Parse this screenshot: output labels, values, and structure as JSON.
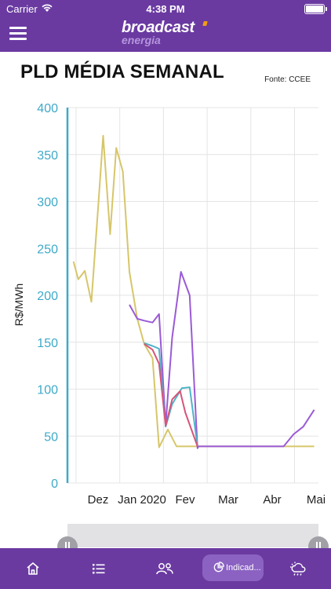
{
  "status_bar": {
    "carrier": "Carrier",
    "time": "4:38 PM"
  },
  "header": {
    "brand": "broadcast",
    "brand_sub": "energia"
  },
  "page": {
    "title": "PLD MÉDIA SEMANAL",
    "source": "Fonte: CCEE"
  },
  "tabbar": {
    "items": [
      {
        "icon": "home-icon"
      },
      {
        "icon": "list-icon"
      },
      {
        "icon": "users-icon"
      },
      {
        "icon": "pie-chart-icon",
        "label": "Indicad...",
        "active": true
      },
      {
        "icon": "weather-icon"
      }
    ]
  },
  "colors": {
    "brand_purple": "#6a3aa1",
    "axis_blue": "#3ea9c8"
  },
  "chart_data": {
    "type": "line",
    "ylabel": "R$/MWh",
    "ylim": [
      0,
      400
    ],
    "yticks": [
      0,
      50,
      100,
      150,
      200,
      250,
      300,
      350,
      400
    ],
    "xticks": [
      "Dez",
      "Jan 2020",
      "Fev",
      "Mar",
      "Abr",
      "Mai"
    ],
    "series": [
      {
        "color": "#d6c66a",
        "points": [
          [
            -0.06,
            236
          ],
          [
            0.05,
            217
          ],
          [
            0.2,
            226
          ],
          [
            0.35,
            193
          ],
          [
            0.5,
            290
          ],
          [
            0.62,
            370
          ],
          [
            0.78,
            265
          ],
          [
            0.92,
            357
          ],
          [
            1.07,
            332
          ],
          [
            1.22,
            225
          ],
          [
            1.4,
            175
          ],
          [
            1.56,
            148
          ],
          [
            1.75,
            133
          ],
          [
            1.9,
            38
          ],
          [
            2.1,
            57
          ],
          [
            2.3,
            39
          ],
          [
            2.55,
            39
          ],
          [
            3.0,
            39
          ],
          [
            3.5,
            39
          ],
          [
            4.0,
            39
          ],
          [
            4.5,
            39
          ],
          [
            5.0,
            39
          ],
          [
            5.45,
            39
          ]
        ]
      },
      {
        "color": "#9a5ad6",
        "points": [
          [
            1.22,
            190
          ],
          [
            1.4,
            175
          ],
          [
            1.56,
            173
          ],
          [
            1.75,
            171
          ],
          [
            1.9,
            180
          ],
          [
            2.05,
            62
          ],
          [
            2.2,
            155
          ],
          [
            2.4,
            225
          ],
          [
            2.6,
            200
          ],
          [
            2.78,
            37
          ],
          [
            2.8,
            39
          ],
          [
            3.0,
            39
          ],
          [
            3.5,
            39
          ],
          [
            4.0,
            39
          ],
          [
            4.5,
            39
          ],
          [
            4.75,
            39
          ],
          [
            4.98,
            52
          ],
          [
            5.2,
            60
          ],
          [
            5.45,
            78
          ]
        ]
      },
      {
        "color": "#4fb4c8",
        "points": [
          [
            1.56,
            149
          ],
          [
            1.75,
            146
          ],
          [
            1.9,
            143
          ],
          [
            2.05,
            60
          ],
          [
            2.2,
            84
          ],
          [
            2.42,
            101
          ],
          [
            2.6,
            102
          ],
          [
            2.78,
            39
          ]
        ]
      },
      {
        "color": "#d6557a",
        "points": [
          [
            1.56,
            148
          ],
          [
            1.75,
            142
          ],
          [
            1.9,
            127
          ],
          [
            2.05,
            61
          ],
          [
            2.2,
            89
          ],
          [
            2.38,
            98
          ],
          [
            2.5,
            75
          ],
          [
            2.78,
            39
          ]
        ]
      }
    ]
  }
}
